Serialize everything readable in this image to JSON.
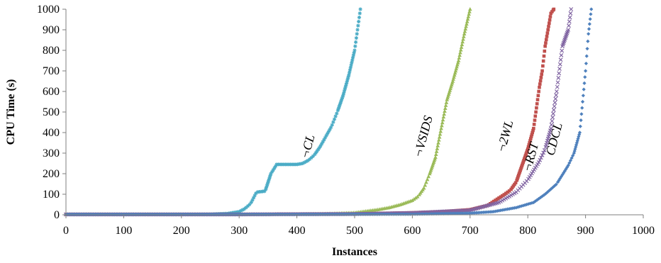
{
  "chart_data": {
    "type": "scatter",
    "xlabel": "Instances",
    "ylabel": "CPU Time (s)",
    "xlim": [
      0,
      1000
    ],
    "ylim": [
      0,
      1000
    ],
    "x_ticks": [
      0,
      100,
      200,
      300,
      400,
      500,
      600,
      700,
      800,
      900,
      1000
    ],
    "y_ticks": [
      0,
      100,
      200,
      300,
      400,
      500,
      600,
      700,
      800,
      900,
      1000
    ],
    "grid": false,
    "legend": "none (series labeled inline)",
    "series": [
      {
        "name": "¬CL",
        "color": "#4bacc6",
        "marker": "asterisk",
        "points": [
          [
            0,
            2
          ],
          [
            100,
            2
          ],
          [
            200,
            2
          ],
          [
            250,
            3
          ],
          [
            280,
            6
          ],
          [
            300,
            15
          ],
          [
            310,
            30
          ],
          [
            320,
            55
          ],
          [
            330,
            110
          ],
          [
            345,
            115
          ],
          [
            355,
            200
          ],
          [
            365,
            245
          ],
          [
            380,
            245
          ],
          [
            400,
            245
          ],
          [
            410,
            250
          ],
          [
            420,
            265
          ],
          [
            430,
            290
          ],
          [
            440,
            330
          ],
          [
            450,
            380
          ],
          [
            460,
            430
          ],
          [
            470,
            500
          ],
          [
            480,
            580
          ],
          [
            490,
            680
          ],
          [
            500,
            800
          ],
          [
            505,
            900
          ],
          [
            510,
            1000
          ]
        ]
      },
      {
        "name": "¬VSIDS",
        "color": "#9bbb59",
        "marker": "triangle",
        "points": [
          [
            0,
            2
          ],
          [
            200,
            2
          ],
          [
            400,
            3
          ],
          [
            450,
            5
          ],
          [
            500,
            10
          ],
          [
            540,
            25
          ],
          [
            560,
            35
          ],
          [
            580,
            50
          ],
          [
            600,
            70
          ],
          [
            610,
            90
          ],
          [
            620,
            130
          ],
          [
            630,
            200
          ],
          [
            640,
            280
          ],
          [
            650,
            420
          ],
          [
            660,
            560
          ],
          [
            670,
            650
          ],
          [
            680,
            750
          ],
          [
            690,
            880
          ],
          [
            700,
            1000
          ]
        ]
      },
      {
        "name": "¬2WL",
        "color": "#c0504d",
        "marker": "square",
        "points": [
          [
            0,
            2
          ],
          [
            300,
            2
          ],
          [
            500,
            4
          ],
          [
            600,
            10
          ],
          [
            650,
            15
          ],
          [
            700,
            25
          ],
          [
            730,
            45
          ],
          [
            760,
            100
          ],
          [
            770,
            120
          ],
          [
            780,
            160
          ],
          [
            790,
            240
          ],
          [
            800,
            320
          ],
          [
            810,
            420
          ],
          [
            815,
            520
          ],
          [
            820,
            620
          ],
          [
            825,
            700
          ],
          [
            830,
            820
          ],
          [
            835,
            900
          ],
          [
            840,
            980
          ],
          [
            845,
            1000
          ]
        ]
      },
      {
        "name": "¬RST",
        "color": "#8064a2",
        "marker": "cross",
        "points": [
          [
            0,
            2
          ],
          [
            300,
            2
          ],
          [
            500,
            4
          ],
          [
            600,
            9
          ],
          [
            700,
            22
          ],
          [
            750,
            60
          ],
          [
            780,
            110
          ],
          [
            800,
            170
          ],
          [
            820,
            260
          ],
          [
            830,
            320
          ],
          [
            840,
            420
          ],
          [
            850,
            600
          ],
          [
            860,
            820
          ],
          [
            870,
            900
          ],
          [
            875,
            1000
          ]
        ]
      },
      {
        "name": "CDCL",
        "color": "#4f81bd",
        "marker": "diamond",
        "points": [
          [
            0,
            2
          ],
          [
            400,
            2
          ],
          [
            600,
            3
          ],
          [
            700,
            8
          ],
          [
            740,
            15
          ],
          [
            780,
            35
          ],
          [
            810,
            60
          ],
          [
            830,
            100
          ],
          [
            850,
            150
          ],
          [
            870,
            240
          ],
          [
            880,
            300
          ],
          [
            890,
            400
          ],
          [
            895,
            550
          ],
          [
            900,
            700
          ],
          [
            905,
            880
          ],
          [
            910,
            1000
          ]
        ]
      }
    ]
  }
}
